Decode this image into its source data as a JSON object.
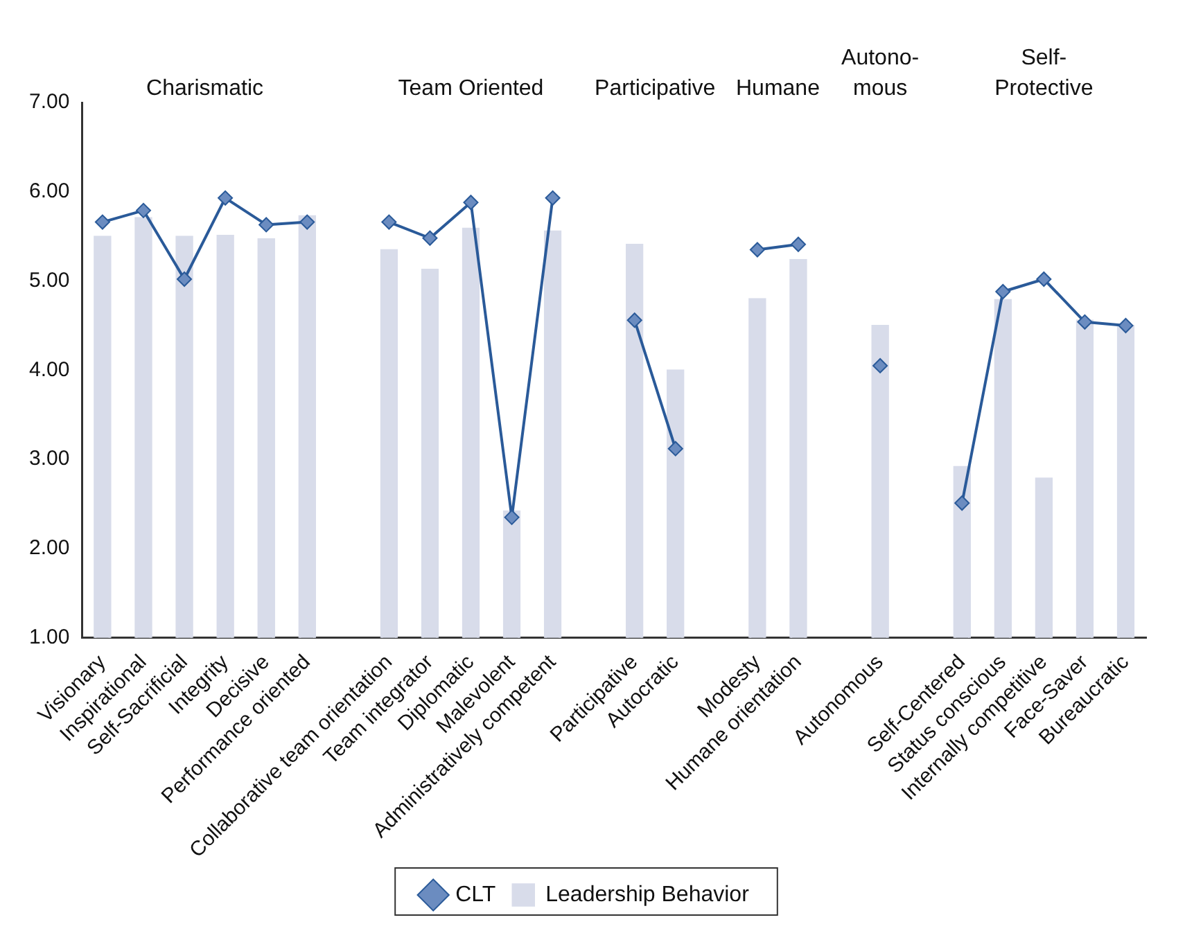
{
  "chart_data": {
    "type": "bar",
    "categories": [
      "Visionary",
      "Inspirational",
      "Self-Sacrificial",
      "Integrity",
      "Decisive",
      "Performance oriented",
      null,
      "Collaborative team orientation",
      "Team integrator",
      "Diplomatic",
      "Malevolent",
      "Administratively competent",
      null,
      "Participative",
      "Autocratic",
      null,
      "Modesty",
      "Humane orientation",
      null,
      "Autonomous",
      null,
      "Self-Centered",
      "Status conscious",
      "Internally competitive",
      "Face-Saver",
      "Bureaucratic"
    ],
    "series": [
      {
        "name": "CLT",
        "type": "line",
        "color": "#2a5a99",
        "values": [
          5.66,
          5.79,
          5.02,
          5.93,
          5.63,
          5.66,
          null,
          5.66,
          5.48,
          5.88,
          2.35,
          5.93,
          null,
          4.56,
          3.12,
          null,
          5.35,
          5.41,
          null,
          4.05,
          null,
          2.51,
          4.88,
          5.02,
          4.54,
          4.5
        ]
      },
      {
        "name": "Leadership Behavior",
        "color": "#d8dcea",
        "values": [
          5.5,
          5.71,
          5.5,
          5.51,
          5.47,
          5.73,
          null,
          5.35,
          5.13,
          5.59,
          2.42,
          5.56,
          null,
          5.41,
          4.0,
          null,
          4.8,
          5.24,
          null,
          4.5,
          null,
          2.92,
          4.79,
          2.79,
          4.56,
          4.5
        ]
      }
    ],
    "ylim": [
      1,
      7
    ],
    "yticks": [
      {
        "value": 1,
        "label": "1.00"
      },
      {
        "value": 2,
        "label": "2.00"
      },
      {
        "value": 3,
        "label": "3.00"
      },
      {
        "value": 4,
        "label": "4.00"
      },
      {
        "value": 5,
        "label": "5.00"
      },
      {
        "value": 6,
        "label": "6.00"
      },
      {
        "value": 7,
        "label": "7.00"
      }
    ],
    "annotations": [
      "Charismatic",
      "Team Oriented",
      "Participative",
      "Humane",
      "Autono-\nmous",
      "Self-\nProtective"
    ],
    "grid": false,
    "legend": "bottom",
    "marker": "diamond"
  }
}
